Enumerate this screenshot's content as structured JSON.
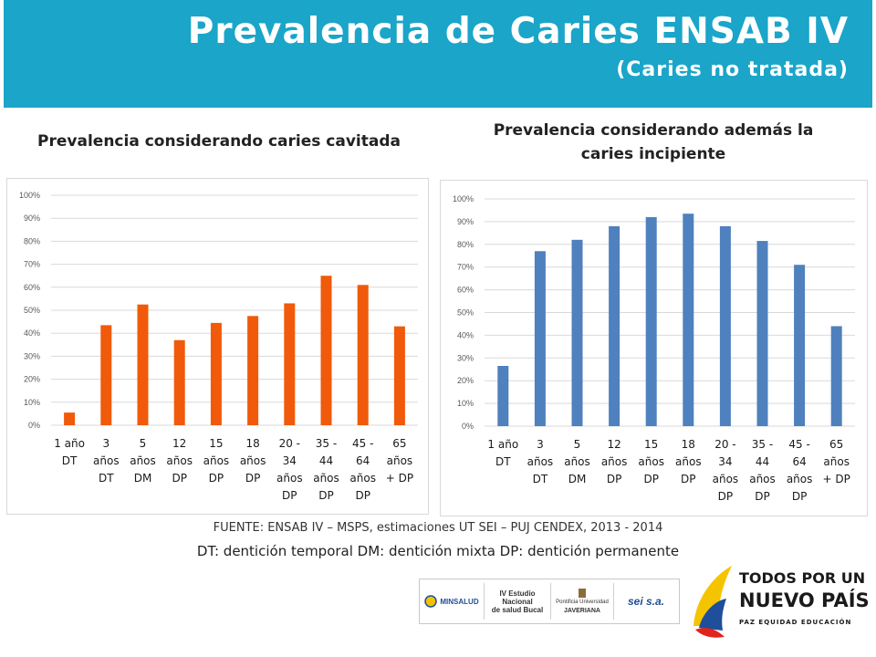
{
  "header": {
    "title": "Prevalencia de Caries ENSAB IV",
    "subtitle": "(Caries no tratada)",
    "bg_color": "#1aa5c9"
  },
  "chart_data": [
    {
      "type": "bar",
      "title": "Prevalencia considerando caries cavitada",
      "categories": [
        [
          "1 año",
          "DT"
        ],
        [
          "3",
          "años",
          "DT"
        ],
        [
          "5",
          "años",
          "DM"
        ],
        [
          "12",
          "años",
          "DP"
        ],
        [
          "15",
          "años",
          "DP"
        ],
        [
          "18",
          "años",
          "DP"
        ],
        [
          "20 -",
          "34",
          "años",
          "DP"
        ],
        [
          "35 -",
          "44",
          "años",
          "DP"
        ],
        [
          "45 -",
          "64",
          "años",
          "DP"
        ],
        [
          "65",
          "años",
          "+ DP"
        ]
      ],
      "values": [
        5.5,
        43.5,
        52.5,
        37,
        44.5,
        47.5,
        53,
        65,
        61,
        43
      ],
      "ylim": [
        0,
        100
      ],
      "yticks": [
        "0%",
        "10%",
        "20%",
        "30%",
        "40%",
        "50%",
        "60%",
        "70%",
        "80%",
        "90%",
        "100%"
      ],
      "color": "#f05a0a",
      "grid": true
    },
    {
      "type": "bar",
      "title": "Prevalencia considerando además la caries incipiente",
      "categories": [
        [
          "1 año",
          "DT"
        ],
        [
          "3",
          "años",
          "DT"
        ],
        [
          "5",
          "años",
          "DM"
        ],
        [
          "12",
          "años",
          "DP"
        ],
        [
          "15",
          "años",
          "DP"
        ],
        [
          "18",
          "años",
          "DP"
        ],
        [
          "20 -",
          "34",
          "años",
          "DP"
        ],
        [
          "35 -",
          "44",
          "años",
          "DP"
        ],
        [
          "45 -",
          "64",
          "años",
          "DP"
        ],
        [
          "65",
          "años",
          "+ DP"
        ]
      ],
      "values": [
        26.5,
        77,
        82,
        88,
        92,
        93.5,
        88,
        81.5,
        71,
        44
      ],
      "ylim": [
        0,
        100
      ],
      "yticks": [
        "0%",
        "10%",
        "20%",
        "30%",
        "40%",
        "50%",
        "60%",
        "70%",
        "80%",
        "90%",
        "100%"
      ],
      "color": "#4e81bd",
      "grid": true
    }
  ],
  "headings": {
    "left": "Prevalencia considerando caries cavitada",
    "right_line1": "Prevalencia considerando además la",
    "right_line2": "caries incipiente"
  },
  "footer": {
    "source": "FUENTE: ENSAB IV – MSPS, estimaciones UT SEI – PUJ CENDEX, 2013 - 2014",
    "legend": "DT: dentición temporal   DM: dentición mixta  DP: dentición permanente"
  },
  "logos": {
    "minsalud": "MINSALUD",
    "ensab_line1": "IV Estudio Nacional",
    "ensab_line2": "de salud Bucal",
    "javeriana_line1": "Pontificia Universidad",
    "javeriana_line2": "JAVERIANA",
    "sei": "sei s.a.",
    "todos_line1": "TODOS POR UN",
    "todos_line2": "NUEVO PAÍS",
    "todos_line3": "PAZ  EQUIDAD  EDUCACIÓN"
  }
}
